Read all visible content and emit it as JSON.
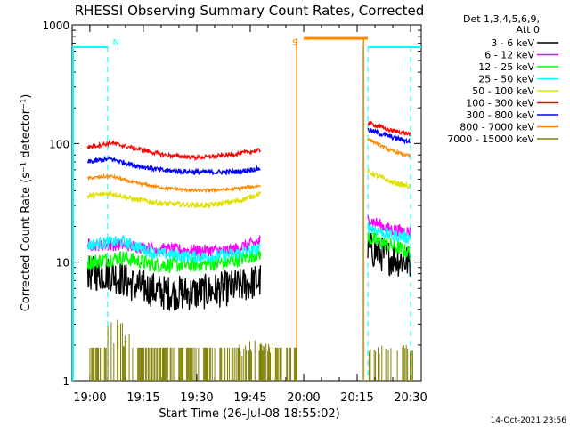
{
  "chart_data": {
    "type": "line",
    "title": "RHESSI Observing Summary Count Rates, Corrected",
    "xlabel": "Start Time (26-Jul-08 18:55:02)",
    "ylabel": "Corrected Count Rate (s⁻¹ detector⁻¹)",
    "yscale": "log",
    "ylim": [
      1,
      1000
    ],
    "y_ticks": [
      {
        "value": 1,
        "label": "1"
      },
      {
        "value": 10,
        "label": "10"
      },
      {
        "value": 100,
        "label": "100"
      },
      {
        "value": 1000,
        "label": "1000"
      }
    ],
    "xlim_minutes": [
      18.917,
      20.55
    ],
    "x_ticks": [
      {
        "value": 19.0,
        "label": "19:00"
      },
      {
        "value": 19.25,
        "label": "19:15"
      },
      {
        "value": 19.5,
        "label": "19:30"
      },
      {
        "value": 19.75,
        "label": "19:45"
      },
      {
        "value": 20.0,
        "label": "20:00"
      },
      {
        "value": 20.25,
        "label": "20:15"
      },
      {
        "value": 20.5,
        "label": "20:30"
      }
    ],
    "legend": {
      "placement": "right",
      "header": [
        "Det 1,3,4,5,6,9,",
        "Att 0"
      ]
    },
    "series": [
      {
        "name": "3 - 6 keV",
        "color": "#000000",
        "noise": 0.35,
        "segments": [
          [
            [
              18.99,
              8
            ],
            [
              19.1,
              8
            ],
            [
              19.2,
              6.5
            ],
            [
              19.35,
              5.5
            ],
            [
              19.5,
              5.5
            ],
            [
              19.65,
              6
            ],
            [
              19.8,
              7
            ]
          ],
          [
            [
              20.3,
              13
            ],
            [
              20.4,
              11
            ],
            [
              20.5,
              10
            ]
          ]
        ]
      },
      {
        "name": "6 - 12 keV",
        "color": "#ff00ff",
        "noise": 0.12,
        "segments": [
          [
            [
              18.99,
              14
            ],
            [
              19.15,
              14
            ],
            [
              19.3,
              13
            ],
            [
              19.5,
              12.5
            ],
            [
              19.65,
              12.5
            ],
            [
              19.8,
              15
            ]
          ],
          [
            [
              20.3,
              23
            ],
            [
              20.4,
              19
            ],
            [
              20.5,
              18
            ]
          ]
        ]
      },
      {
        "name": "12 - 25 keV",
        "color": "#00ff00",
        "noise": 0.15,
        "segments": [
          [
            [
              18.99,
              10
            ],
            [
              19.15,
              11
            ],
            [
              19.3,
              9.5
            ],
            [
              19.5,
              9.5
            ],
            [
              19.65,
              10
            ],
            [
              19.8,
              12
            ]
          ],
          [
            [
              20.3,
              16
            ],
            [
              20.4,
              14
            ],
            [
              20.5,
              12
            ]
          ]
        ]
      },
      {
        "name": "25 - 50 keV",
        "color": "#00ffff",
        "noise": 0.12,
        "segments": [
          [
            [
              18.99,
              14
            ],
            [
              19.15,
              15
            ],
            [
              19.3,
              12
            ],
            [
              19.5,
              11
            ],
            [
              19.65,
              11.5
            ],
            [
              19.8,
              13
            ]
          ],
          [
            [
              20.3,
              20
            ],
            [
              20.4,
              17
            ],
            [
              20.5,
              16
            ]
          ]
        ]
      },
      {
        "name": "50 - 100 keV",
        "color": "#e0e000",
        "noise": 0.05,
        "segments": [
          [
            [
              18.99,
              36
            ],
            [
              19.1,
              38
            ],
            [
              19.2,
              34
            ],
            [
              19.35,
              31
            ],
            [
              19.55,
              30
            ],
            [
              19.7,
              33
            ],
            [
              19.8,
              38
            ]
          ],
          [
            [
              20.3,
              58
            ],
            [
              20.4,
              48
            ],
            [
              20.5,
              43
            ]
          ]
        ]
      },
      {
        "name": "100 - 300 keV",
        "color": "#ff0000",
        "noise": 0.04,
        "segments": [
          [
            [
              18.99,
              93
            ],
            [
              19.1,
              101
            ],
            [
              19.2,
              92
            ],
            [
              19.35,
              80
            ],
            [
              19.5,
              76
            ],
            [
              19.65,
              80
            ],
            [
              19.8,
              88
            ]
          ],
          [
            [
              20.3,
              150
            ],
            [
              20.4,
              130
            ],
            [
              20.5,
              120
            ]
          ]
        ]
      },
      {
        "name": "300 - 800 keV",
        "color": "#0000ff",
        "noise": 0.05,
        "segments": [
          [
            [
              18.99,
              70
            ],
            [
              19.1,
              74
            ],
            [
              19.2,
              66
            ],
            [
              19.35,
              59
            ],
            [
              19.55,
              57
            ],
            [
              19.7,
              58
            ],
            [
              19.8,
              62
            ]
          ],
          [
            [
              20.3,
              130
            ],
            [
              20.4,
              115
            ],
            [
              20.5,
              103
            ]
          ]
        ]
      },
      {
        "name": "800 - 7000 keV",
        "color": "#ff8800",
        "noise": 0.03,
        "segments": [
          [
            [
              18.99,
              51
            ],
            [
              19.1,
              53
            ],
            [
              19.2,
              47
            ],
            [
              19.35,
              42
            ],
            [
              19.5,
              40
            ],
            [
              19.65,
              41
            ],
            [
              19.8,
              44
            ]
          ],
          [
            [
              20.3,
              110
            ],
            [
              20.4,
              88
            ],
            [
              20.5,
              78
            ]
          ]
        ]
      },
      {
        "name": "7000 - 15000 keV",
        "color": "#808000",
        "noise": 0,
        "segments": []
      }
    ],
    "attenuator_state_flag": {
      "color": "#00ffff",
      "segments": [
        [
          18.917,
          19.083,
          650
        ],
        [
          20.3,
          20.55,
          650
        ]
      ],
      "dashes": [
        19.083,
        20.3,
        20.5
      ]
    },
    "saa_flag": {
      "color": "#ff8800",
      "segments": [
        [
          20.0,
          20.3,
          770
        ]
      ],
      "lines": [
        19.9675,
        20.28
      ]
    },
    "annotations": [
      {
        "text": "N",
        "color": "#00ffff",
        "x": 19.09
      },
      {
        "text": "S",
        "color": "#ff8800",
        "x": 19.93
      }
    ],
    "timestamp": "14-Oct-2021 23:56"
  }
}
